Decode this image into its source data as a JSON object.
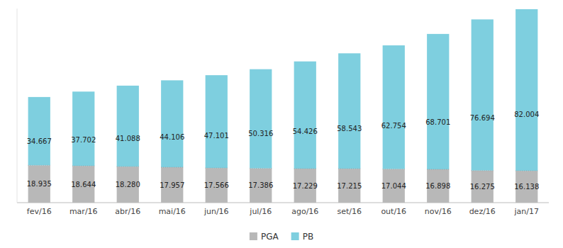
{
  "chart_data": {
    "type": "bar",
    "stacked": true,
    "categories": [
      "fev/16",
      "mar/16",
      "abr/16",
      "mai/16",
      "jun/16",
      "jul/16",
      "ago/16",
      "set/16",
      "out/16",
      "nov/16",
      "dez/16",
      "jan/17"
    ],
    "series": [
      {
        "name": "PGA",
        "color": "#b8b8b8",
        "values": [
          18.935,
          18.644,
          18.28,
          17.957,
          17.566,
          17.386,
          17.229,
          17.215,
          17.044,
          16.898,
          16.275,
          16.138
        ],
        "value_labels": [
          "18.935",
          "18.644",
          "18.280",
          "17.957",
          "17.566",
          "17.386",
          "17.229",
          "17.215",
          "17.044",
          "16.898",
          "16.275",
          "16.138"
        ]
      },
      {
        "name": "PB",
        "color": "#7ecfdf",
        "values": [
          34.667,
          37.702,
          41.088,
          44.106,
          47.101,
          50.316,
          54.426,
          58.543,
          62.754,
          68.701,
          76.694,
          82.004
        ],
        "value_labels": [
          "34.667",
          "37.702",
          "41.088",
          "44.106",
          "47.101",
          "50.316",
          "54.426",
          "58.543",
          "62.754",
          "68.701",
          "76.694",
          "82.004"
        ]
      }
    ],
    "ylim": [
      0,
      98.5
    ],
    "tick_labels": "x",
    "grid": false,
    "legend": "bottom",
    "data_labels": true
  }
}
